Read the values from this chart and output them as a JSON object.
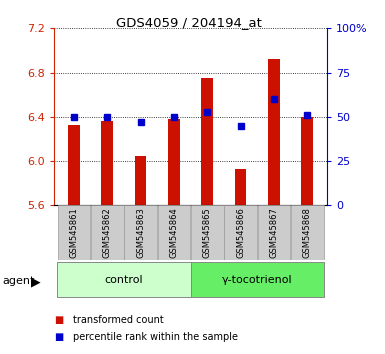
{
  "title": "GDS4059 / 204194_at",
  "samples": [
    "GSM545861",
    "GSM545862",
    "GSM545863",
    "GSM545864",
    "GSM545865",
    "GSM545866",
    "GSM545867",
    "GSM545868"
  ],
  "red_values": [
    6.33,
    6.36,
    6.05,
    6.38,
    6.75,
    5.93,
    6.92,
    6.4
  ],
  "blue_values": [
    50,
    50,
    47,
    50,
    53,
    45,
    60,
    51
  ],
  "ylim_left": [
    5.6,
    7.2
  ],
  "ylim_right": [
    0,
    100
  ],
  "yticks_left": [
    5.6,
    6.0,
    6.4,
    6.8,
    7.2
  ],
  "yticks_right": [
    0,
    25,
    50,
    75,
    100
  ],
  "ytick_labels_right": [
    "0",
    "25",
    "50",
    "75",
    "100%"
  ],
  "groups": [
    {
      "label": "control",
      "indices": [
        0,
        1,
        2,
        3
      ],
      "color": "#ccffcc"
    },
    {
      "label": "γ-tocotrienol",
      "indices": [
        4,
        5,
        6,
        7
      ],
      "color": "#66ee66"
    }
  ],
  "agent_label": "agent",
  "bar_color": "#cc1100",
  "dot_color": "#0000cc",
  "bar_bottom": 5.6,
  "tick_label_bg": "#cccccc",
  "legend_items": [
    "transformed count",
    "percentile rank within the sample"
  ],
  "legend_colors": [
    "#cc1100",
    "#0000cc"
  ]
}
